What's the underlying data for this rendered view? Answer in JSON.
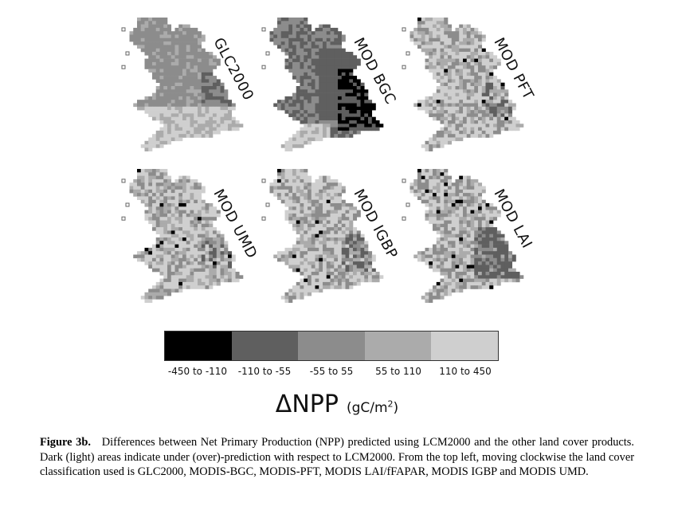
{
  "figure": {
    "maps": [
      {
        "label": "GLC2000",
        "tone": "glc"
      },
      {
        "label": "MOD BGC",
        "tone": "bgc"
      },
      {
        "label": "MOD PFT",
        "tone": "light"
      },
      {
        "label": "MOD UMD",
        "tone": "light"
      },
      {
        "label": "MOD IGBP",
        "tone": "light"
      },
      {
        "label": "MOD LAI",
        "tone": "lai"
      }
    ],
    "legend": {
      "bins": [
        {
          "label": "-450 to -110",
          "color": "#000000"
        },
        {
          "label": "-110 to -55",
          "color": "#5f5f5f"
        },
        {
          "label": "-55 to 55",
          "color": "#8c8c8c"
        },
        {
          "label": "55 to 110",
          "color": "#ababab"
        },
        {
          "label": "110 to 450",
          "color": "#cfcfcf"
        }
      ],
      "title": "ΔNPP",
      "unit_prefix": "(gC/m",
      "unit_sup": "2",
      "unit_suffix": ")"
    }
  },
  "caption": {
    "label": "Figure 3b.",
    "text": "Differences between Net Primary Production (NPP) predicted using LCM2000 and the other land cover products. Dark (light) areas indicate under (over)-prediction with respect to LCM2000. From the top left, moving clockwise the land cover classification used is GLC2000, MODIS-BGC, MODIS-PFT, MODIS LAI/fFAPAR, MODIS IGBP and MODIS UMD."
  }
}
